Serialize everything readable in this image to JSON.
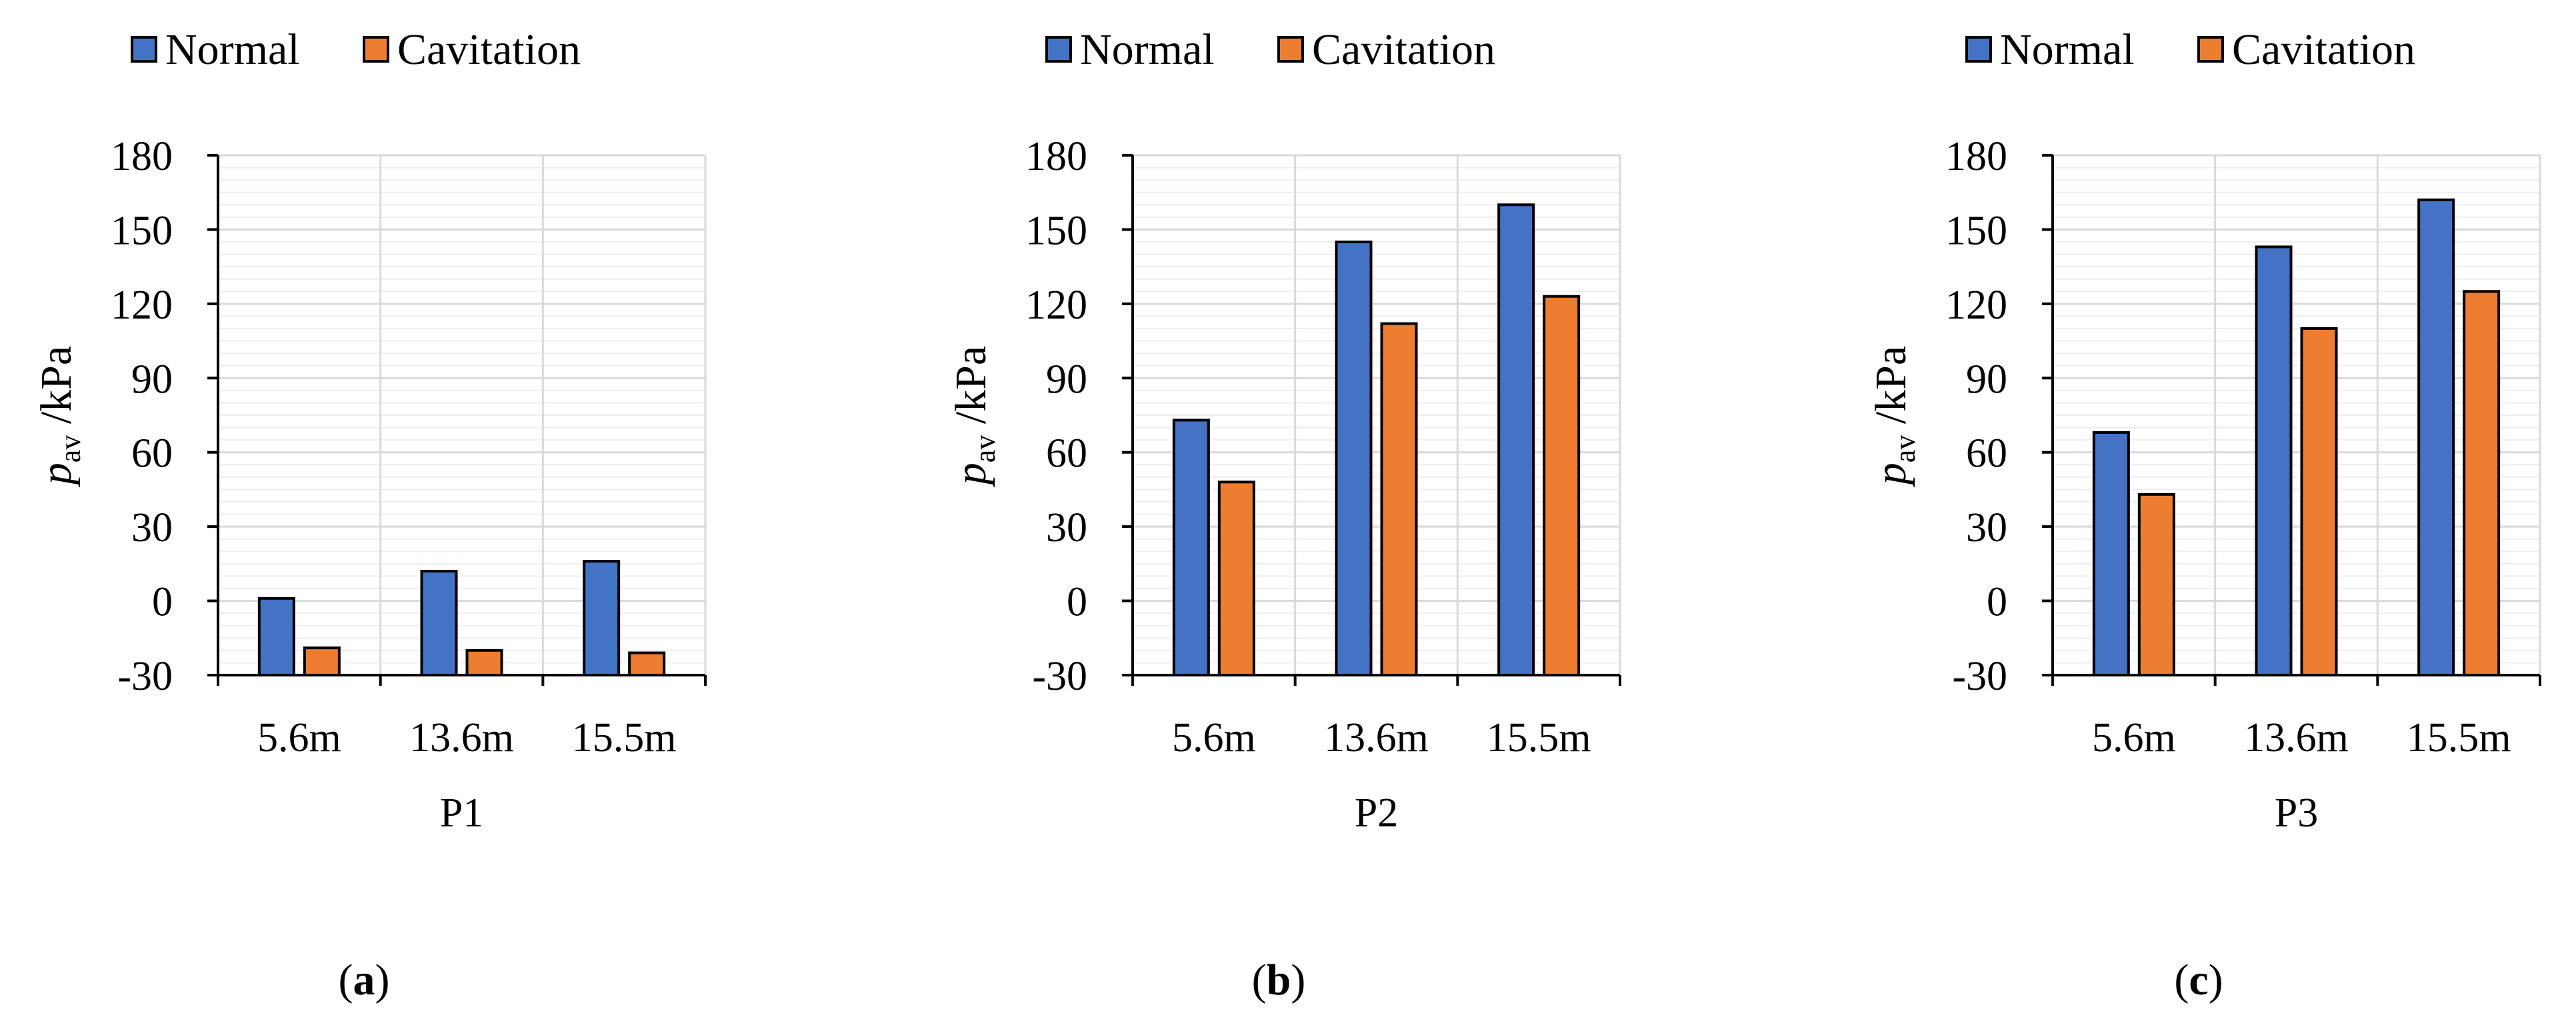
{
  "figure": {
    "ylabel": {
      "main": "p",
      "sub": "av",
      "unit": " /kPa"
    }
  },
  "colors": {
    "normal": "#4472C4",
    "cavitation": "#ED7D31",
    "grid": "#D9D9D9",
    "axis": "#000000"
  },
  "chart_data": [
    {
      "type": "bar",
      "panel": "(a)",
      "panel_open": "(",
      "panel_letter": "a",
      "panel_close": ")",
      "xlabel": "P1",
      "ylabel": "p_av /kPa",
      "categories": [
        "5.6m",
        "13.6m",
        "15.5m"
      ],
      "ylim": [
        -30,
        180
      ],
      "yticks": [
        -30,
        0,
        30,
        60,
        90,
        120,
        150,
        180
      ],
      "legend": [
        "Normal",
        "Cavitation"
      ],
      "series": [
        {
          "name": "Normal",
          "values": [
            1,
            12,
            16
          ]
        },
        {
          "name": "Cavitation",
          "values": [
            -19,
            -20,
            -21
          ]
        }
      ]
    },
    {
      "type": "bar",
      "panel": "(b)",
      "panel_open": "(",
      "panel_letter": "b",
      "panel_close": ")",
      "xlabel": "P2",
      "ylabel": "p_av /kPa",
      "categories": [
        "5.6m",
        "13.6m",
        "15.5m"
      ],
      "ylim": [
        -30,
        180
      ],
      "yticks": [
        -30,
        0,
        30,
        60,
        90,
        120,
        150,
        180
      ],
      "legend": [
        "Normal",
        "Cavitation"
      ],
      "series": [
        {
          "name": "Normal",
          "values": [
            73,
            145,
            160
          ]
        },
        {
          "name": "Cavitation",
          "values": [
            48,
            112,
            123
          ]
        }
      ]
    },
    {
      "type": "bar",
      "panel": "(c)",
      "panel_open": "(",
      "panel_letter": "c",
      "panel_close": ")",
      "xlabel": "P3",
      "ylabel": "p_av /kPa",
      "categories": [
        "5.6m",
        "13.6m",
        "15.5m"
      ],
      "ylim": [
        -30,
        180
      ],
      "yticks": [
        -30,
        0,
        30,
        60,
        90,
        120,
        150,
        180
      ],
      "legend": [
        "Normal",
        "Cavitation"
      ],
      "series": [
        {
          "name": "Normal",
          "values": [
            68,
            143,
            162
          ]
        },
        {
          "name": "Cavitation",
          "values": [
            43,
            110,
            125
          ]
        }
      ]
    }
  ]
}
